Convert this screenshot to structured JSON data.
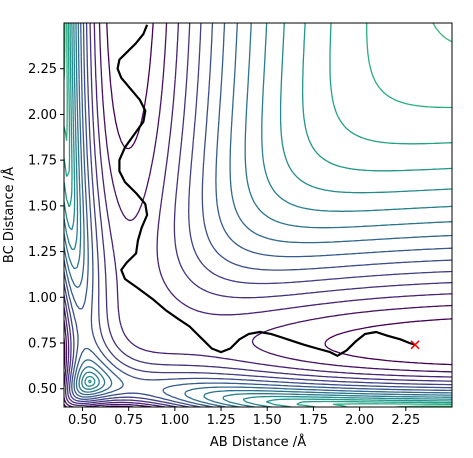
{
  "chart_data": {
    "type": "contour",
    "title": "",
    "xlabel": "AB Distance /Å",
    "ylabel": "BC Distance /Å",
    "xlim": [
      0.4,
      2.5
    ],
    "ylim": [
      0.4,
      2.5
    ],
    "x_ticks": [
      "0.50",
      "0.75",
      "1.00",
      "1.25",
      "1.50",
      "1.75",
      "2.00",
      "2.25"
    ],
    "y_ticks": [
      "0.50",
      "0.75",
      "1.00",
      "1.25",
      "1.50",
      "1.75",
      "2.00",
      "2.25"
    ],
    "x_tick_values": [
      0.5,
      0.75,
      1.0,
      1.25,
      1.5,
      1.75,
      2.0,
      2.25
    ],
    "y_tick_values": [
      0.5,
      0.75,
      1.0,
      1.25,
      1.5,
      1.75,
      2.0,
      2.25
    ],
    "contour_colormap": "viridis",
    "contour_count": 22,
    "trajectory": {
      "color": "#000000",
      "points": [
        [
          0.85,
          2.49
        ],
        [
          0.83,
          2.44
        ],
        [
          0.79,
          2.39
        ],
        [
          0.74,
          2.34
        ],
        [
          0.7,
          2.3
        ],
        [
          0.69,
          2.25
        ],
        [
          0.71,
          2.2
        ],
        [
          0.76,
          2.14
        ],
        [
          0.81,
          2.08
        ],
        [
          0.84,
          2.02
        ],
        [
          0.83,
          1.96
        ],
        [
          0.78,
          1.89
        ],
        [
          0.73,
          1.82
        ],
        [
          0.7,
          1.75
        ],
        [
          0.7,
          1.69
        ],
        [
          0.73,
          1.63
        ],
        [
          0.79,
          1.57
        ],
        [
          0.84,
          1.51
        ],
        [
          0.85,
          1.45
        ],
        [
          0.82,
          1.38
        ],
        [
          0.8,
          1.31
        ],
        [
          0.79,
          1.24
        ],
        [
          0.74,
          1.19
        ],
        [
          0.71,
          1.15
        ],
        [
          0.73,
          1.1
        ],
        [
          0.8,
          1.05
        ],
        [
          0.88,
          0.99
        ],
        [
          0.95,
          0.93
        ],
        [
          1.02,
          0.88
        ],
        [
          1.08,
          0.84
        ],
        [
          1.12,
          0.8
        ],
        [
          1.16,
          0.76
        ],
        [
          1.2,
          0.72
        ],
        [
          1.25,
          0.7
        ],
        [
          1.3,
          0.72
        ],
        [
          1.35,
          0.77
        ],
        [
          1.4,
          0.8
        ],
        [
          1.46,
          0.81
        ],
        [
          1.52,
          0.8
        ],
        [
          1.58,
          0.78
        ],
        [
          1.64,
          0.76
        ],
        [
          1.7,
          0.74
        ],
        [
          1.77,
          0.72
        ],
        [
          1.84,
          0.7
        ],
        [
          1.88,
          0.68
        ],
        [
          1.93,
          0.71
        ],
        [
          1.98,
          0.76
        ],
        [
          2.03,
          0.8
        ],
        [
          2.09,
          0.81
        ],
        [
          2.15,
          0.79
        ],
        [
          2.22,
          0.77
        ],
        [
          2.27,
          0.75
        ],
        [
          2.3,
          0.74
        ]
      ]
    },
    "end_marker": {
      "x": 2.3,
      "y": 0.74,
      "symbol": "x",
      "color": "#ff0000"
    }
  }
}
